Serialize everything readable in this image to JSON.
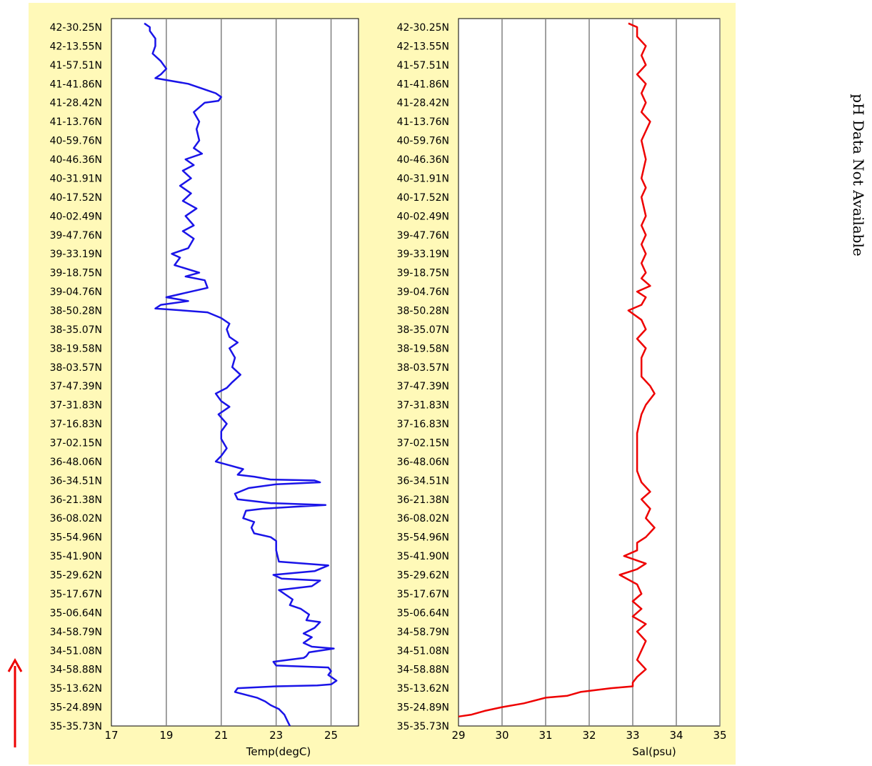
{
  "latitude_labels": [
    "42-30.25N",
    "42-13.55N",
    "41-57.51N",
    "41-41.86N",
    "41-28.42N",
    "41-13.76N",
    "40-59.76N",
    "40-46.36N",
    "40-31.91N",
    "40-17.52N",
    "40-02.49N",
    "39-47.76N",
    "39-33.19N",
    "39-18.75N",
    "39-04.76N",
    "38-50.28N",
    "38-35.07N",
    "38-19.58N",
    "38-03.57N",
    "37-47.39N",
    "37-31.83N",
    "37-16.83N",
    "37-02.15N",
    "36-48.06N",
    "36-34.51N",
    "36-21.38N",
    "36-08.02N",
    "35-54.96N",
    "35-41.90N",
    "35-29.62N",
    "35-17.67N",
    "35-06.64N",
    "34-58.79N",
    "34-51.08N",
    "34-58.88N",
    "35-13.62N",
    "35-24.89N",
    "35-35.73N"
  ],
  "side_text": "pH Data Not Available",
  "colors": {
    "panel_bg": "#fff9b8",
    "temp_line": "#1a14e8",
    "sal_line": "#ee0000",
    "grid": "#808080",
    "arrow": "#ee0000"
  },
  "chart_data": [
    {
      "type": "line",
      "xlabel": "Temp(degC)",
      "xlim": [
        17,
        26
      ],
      "xticks": [
        17,
        19,
        21,
        23,
        25
      ],
      "y_note": "y = track position index 0 (bottom, 35-35.73N) to 37 (top, 42-30.25N)",
      "series": [
        {
          "color": "#1a14e8",
          "points": [
            [
              23.5,
              0
            ],
            [
              23.4,
              0.3
            ],
            [
              23.3,
              0.6
            ],
            [
              23.1,
              0.9
            ],
            [
              22.8,
              1.1
            ],
            [
              22.6,
              1.3
            ],
            [
              22.3,
              1.5
            ],
            [
              21.5,
              1.8
            ],
            [
              21.6,
              2.0
            ],
            [
              23.0,
              2.1
            ],
            [
              24.5,
              2.15
            ],
            [
              25.0,
              2.2
            ],
            [
              25.2,
              2.4
            ],
            [
              24.9,
              2.7
            ],
            [
              25.0,
              2.9
            ],
            [
              24.9,
              3.1
            ],
            [
              23.0,
              3.2
            ],
            [
              22.9,
              3.4
            ],
            [
              24.0,
              3.6
            ],
            [
              24.1,
              3.7
            ],
            [
              24.2,
              3.9
            ],
            [
              25.1,
              4.1
            ],
            [
              24.3,
              4.2
            ],
            [
              24.0,
              4.4
            ],
            [
              24.3,
              4.7
            ],
            [
              24.0,
              4.9
            ],
            [
              24.4,
              5.2
            ],
            [
              24.6,
              5.5
            ],
            [
              24.1,
              5.6
            ],
            [
              24.2,
              5.9
            ],
            [
              23.9,
              6.2
            ],
            [
              23.5,
              6.4
            ],
            [
              23.6,
              6.7
            ],
            [
              23.3,
              7.0
            ],
            [
              23.1,
              7.2
            ],
            [
              24.3,
              7.4
            ],
            [
              24.6,
              7.7
            ],
            [
              23.2,
              7.8
            ],
            [
              22.9,
              8.0
            ],
            [
              24.4,
              8.2
            ],
            [
              24.9,
              8.5
            ],
            [
              23.1,
              8.7
            ],
            [
              23.0,
              9.3
            ],
            [
              23.0,
              9.8
            ],
            [
              22.8,
              10.0
            ],
            [
              22.2,
              10.2
            ],
            [
              22.1,
              10.5
            ],
            [
              22.2,
              10.8
            ],
            [
              21.8,
              11.0
            ],
            [
              21.9,
              11.4
            ],
            [
              22.5,
              11.5
            ],
            [
              23.6,
              11.6
            ],
            [
              24.8,
              11.7
            ],
            [
              22.8,
              11.8
            ],
            [
              21.6,
              12.0
            ],
            [
              21.5,
              12.3
            ],
            [
              22.0,
              12.6
            ],
            [
              23.0,
              12.8
            ],
            [
              24.6,
              12.9
            ],
            [
              24.4,
              13.0
            ],
            [
              22.8,
              13.05
            ],
            [
              22.2,
              13.2
            ],
            [
              21.6,
              13.3
            ],
            [
              21.8,
              13.6
            ],
            [
              21.3,
              13.8
            ],
            [
              20.8,
              14.0
            ],
            [
              21.0,
              14.3
            ],
            [
              21.2,
              14.7
            ],
            [
              21.0,
              15.2
            ],
            [
              21.0,
              15.6
            ],
            [
              21.2,
              16.0
            ],
            [
              20.9,
              16.5
            ],
            [
              21.3,
              16.9
            ],
            [
              21.0,
              17.2
            ],
            [
              20.8,
              17.6
            ],
            [
              21.2,
              17.9
            ],
            [
              21.4,
              18.2
            ],
            [
              21.7,
              18.6
            ],
            [
              21.4,
              19.0
            ],
            [
              21.5,
              19.5
            ],
            [
              21.3,
              20.0
            ],
            [
              21.6,
              20.3
            ],
            [
              21.3,
              20.6
            ],
            [
              21.2,
              21.0
            ],
            [
              21.3,
              21.3
            ],
            [
              21.0,
              21.6
            ],
            [
              20.5,
              21.9
            ],
            [
              19.6,
              22.0
            ],
            [
              18.6,
              22.1
            ],
            [
              18.8,
              22.3
            ],
            [
              19.8,
              22.5
            ],
            [
              19.0,
              22.7
            ],
            [
              19.6,
              22.9
            ],
            [
              20.5,
              23.2
            ],
            [
              20.4,
              23.6
            ],
            [
              19.7,
              23.8
            ],
            [
              20.2,
              24.0
            ],
            [
              19.3,
              24.4
            ],
            [
              19.5,
              24.8
            ],
            [
              19.2,
              25.0
            ],
            [
              19.8,
              25.3
            ],
            [
              20.0,
              25.8
            ],
            [
              19.6,
              26.2
            ],
            [
              20.0,
              26.5
            ],
            [
              19.7,
              27.0
            ],
            [
              20.1,
              27.4
            ],
            [
              19.6,
              27.8
            ],
            [
              19.9,
              28.2
            ],
            [
              19.5,
              28.6
            ],
            [
              19.9,
              29.0
            ],
            [
              19.6,
              29.4
            ],
            [
              20.0,
              29.7
            ],
            [
              19.7,
              30.0
            ],
            [
              20.3,
              30.3
            ],
            [
              20.0,
              30.6
            ],
            [
              20.2,
              31.0
            ],
            [
              20.1,
              31.6
            ],
            [
              20.2,
              32.0
            ],
            [
              20.0,
              32.5
            ],
            [
              20.4,
              33.0
            ],
            [
              20.9,
              33.1
            ],
            [
              21.0,
              33.3
            ],
            [
              20.8,
              33.5
            ],
            [
              20.2,
              33.8
            ],
            [
              19.8,
              34.0
            ],
            [
              18.6,
              34.3
            ],
            [
              18.8,
              34.5
            ],
            [
              19.0,
              34.8
            ],
            [
              18.8,
              35.2
            ],
            [
              18.5,
              35.6
            ],
            [
              18.6,
              36.0
            ],
            [
              18.6,
              36.4
            ],
            [
              18.4,
              36.8
            ],
            [
              18.4,
              37.0
            ],
            [
              18.2,
              37.2
            ]
          ]
        }
      ]
    },
    {
      "type": "line",
      "xlabel": "Sal(psu)",
      "xlim": [
        29,
        35
      ],
      "xticks": [
        29,
        30,
        31,
        32,
        33,
        34,
        35
      ],
      "y_note": "y = track position index 0 (bottom, 35-35.73N) to 37 (top, 42-30.25N)",
      "series": [
        {
          "color": "#ee0000",
          "points": [
            [
              29.0,
              0.5
            ],
            [
              29.3,
              0.6
            ],
            [
              29.6,
              0.8
            ],
            [
              30.0,
              1.0
            ],
            [
              30.5,
              1.2
            ],
            [
              31.0,
              1.5
            ],
            [
              31.5,
              1.6
            ],
            [
              31.8,
              1.8
            ],
            [
              32.5,
              2.0
            ],
            [
              33.0,
              2.1
            ],
            [
              33.0,
              2.3
            ],
            [
              33.1,
              2.6
            ],
            [
              33.3,
              3.0
            ],
            [
              33.1,
              3.5
            ],
            [
              33.2,
              4.0
            ],
            [
              33.3,
              4.5
            ],
            [
              33.1,
              5.0
            ],
            [
              33.3,
              5.4
            ],
            [
              33.0,
              5.8
            ],
            [
              33.2,
              6.2
            ],
            [
              33.0,
              6.6
            ],
            [
              33.2,
              7.0
            ],
            [
              33.1,
              7.5
            ],
            [
              32.7,
              8.0
            ],
            [
              33.1,
              8.3
            ],
            [
              33.3,
              8.6
            ],
            [
              32.8,
              9.0
            ],
            [
              33.1,
              9.3
            ],
            [
              33.1,
              9.7
            ],
            [
              33.3,
              10.0
            ],
            [
              33.5,
              10.5
            ],
            [
              33.3,
              11.0
            ],
            [
              33.4,
              11.5
            ],
            [
              33.2,
              12.0
            ],
            [
              33.4,
              12.4
            ],
            [
              33.2,
              12.9
            ],
            [
              33.1,
              13.5
            ],
            [
              33.1,
              14.5
            ],
            [
              33.1,
              15.5
            ],
            [
              33.2,
              16.5
            ],
            [
              33.3,
              17.0
            ],
            [
              33.5,
              17.6
            ],
            [
              33.4,
              18.0
            ],
            [
              33.2,
              18.5
            ],
            [
              33.2,
              19.5
            ],
            [
              33.3,
              20.0
            ],
            [
              33.1,
              20.5
            ],
            [
              33.3,
              21.0
            ],
            [
              33.2,
              21.5
            ],
            [
              32.9,
              22.0
            ],
            [
              33.2,
              22.3
            ],
            [
              33.3,
              22.7
            ],
            [
              33.1,
              23.0
            ],
            [
              33.4,
              23.3
            ],
            [
              33.2,
              23.7
            ],
            [
              33.3,
              24.0
            ],
            [
              33.2,
              24.5
            ],
            [
              33.3,
              25.0
            ],
            [
              33.2,
              25.5
            ],
            [
              33.3,
              26.0
            ],
            [
              33.2,
              26.5
            ],
            [
              33.3,
              27.0
            ],
            [
              33.2,
              28.0
            ],
            [
              33.3,
              28.5
            ],
            [
              33.2,
              29.0
            ],
            [
              33.3,
              30.0
            ],
            [
              33.2,
              31.0
            ],
            [
              33.3,
              31.5
            ],
            [
              33.4,
              32.0
            ],
            [
              33.2,
              32.5
            ],
            [
              33.3,
              33.0
            ],
            [
              33.2,
              33.5
            ],
            [
              33.3,
              34.0
            ],
            [
              33.1,
              34.5
            ],
            [
              33.3,
              35.0
            ],
            [
              33.2,
              35.5
            ],
            [
              33.3,
              36.0
            ],
            [
              33.1,
              36.5
            ],
            [
              33.1,
              37.0
            ],
            [
              32.9,
              37.2
            ]
          ]
        }
      ]
    }
  ]
}
